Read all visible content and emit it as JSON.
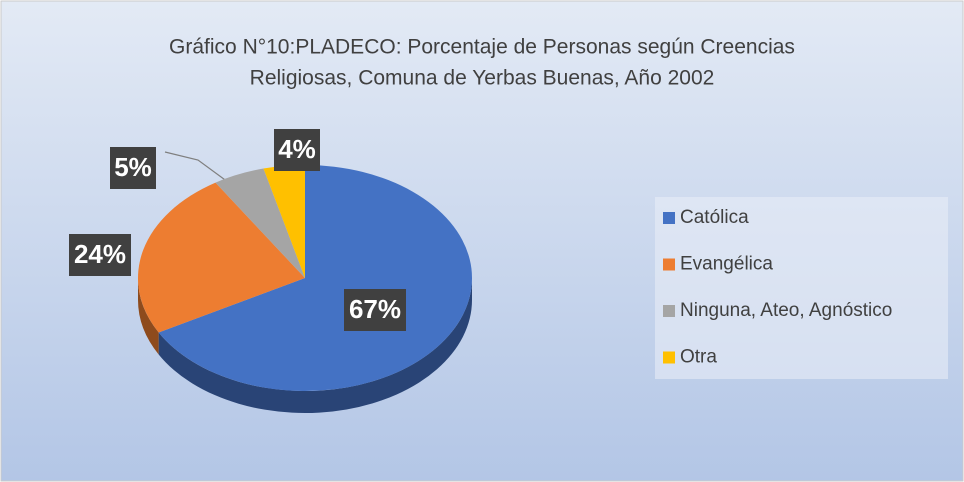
{
  "chart_data": {
    "type": "pie",
    "title": [
      "Gráfico N°10:PLADECO:  Porcentaje de Personas según Creencias",
      "Religiosas, Comuna de Yerbas Buenas, Año 2002"
    ],
    "categories": [
      "Católica",
      "Evangélica",
      "Ninguna, Ateo, Agnóstico",
      "Otra"
    ],
    "values": [
      67,
      24,
      5,
      4
    ],
    "value_labels": [
      "67%",
      "24%",
      "5%",
      "4%"
    ],
    "colors": [
      "#4472c4",
      "#ed7d31",
      "#a5a5a5",
      "#ffc000"
    ],
    "legend": "right"
  }
}
